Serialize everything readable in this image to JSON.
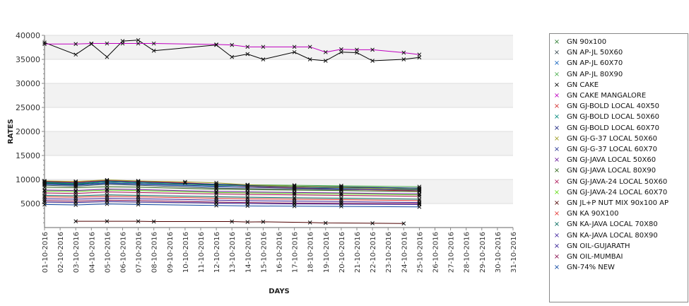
{
  "chart_data": {
    "type": "line",
    "xlabel": "DAYS",
    "ylabel": "RATES",
    "ylim": [
      0,
      40000
    ],
    "yticks": [
      5000,
      10000,
      15000,
      20000,
      25000,
      30000,
      35000,
      40000
    ],
    "grid": "alternating horizontal bands",
    "legend_position": "right",
    "marker": "x",
    "categories": [
      "01-10-2016",
      "02-10-2016",
      "03-10-2016",
      "04-10-2016",
      "05-10-2016",
      "06-10-2016",
      "07-10-2016",
      "08-10-2016",
      "09-10-2016",
      "10-10-2016",
      "11-10-2016",
      "12-10-2016",
      "13-10-2016",
      "14-10-2016",
      "15-10-2016",
      "16-10-2016",
      "17-10-2016",
      "18-10-2016",
      "19-10-2016",
      "20-10-2016",
      "21-10-2016",
      "22-10-2016",
      "23-10-2016",
      "24-10-2016",
      "25-10-2016",
      "26-10-2016",
      "27-10-2016",
      "28-10-2016",
      "29-10-2016",
      "30-10-2016",
      "31-10-2016"
    ],
    "series": [
      {
        "name": "GN 90x100",
        "color": "#2e7d32",
        "points": [
          [
            0,
            9200
          ],
          [
            2,
            9000
          ],
          [
            4,
            9500
          ],
          [
            6,
            9300
          ],
          [
            11,
            8800
          ],
          [
            13,
            8700
          ],
          [
            16,
            8600
          ],
          [
            19,
            8500
          ],
          [
            24,
            8200
          ]
        ]
      },
      {
        "name": "GN AP-JL 50X60",
        "color": "#37474f",
        "points": [
          [
            0,
            8800
          ],
          [
            2,
            8600
          ],
          [
            4,
            9000
          ],
          [
            6,
            8800
          ],
          [
            11,
            8200
          ],
          [
            13,
            8100
          ],
          [
            16,
            8000
          ],
          [
            19,
            7900
          ],
          [
            24,
            7800
          ]
        ]
      },
      {
        "name": "GN AP-JL 60X70",
        "color": "#1565c0",
        "points": [
          [
            0,
            9000
          ],
          [
            2,
            8800
          ],
          [
            4,
            9200
          ],
          [
            6,
            9000
          ],
          [
            11,
            8500
          ],
          [
            13,
            8400
          ],
          [
            16,
            8300
          ],
          [
            19,
            8200
          ],
          [
            24,
            8000
          ]
        ]
      },
      {
        "name": "GN AP-JL 80X90",
        "color": "#4caf50",
        "points": [
          [
            0,
            9400
          ],
          [
            2,
            9200
          ],
          [
            4,
            9700
          ],
          [
            6,
            9500
          ],
          [
            11,
            9000
          ],
          [
            13,
            8900
          ],
          [
            16,
            8800
          ],
          [
            19,
            8700
          ],
          [
            24,
            8500
          ]
        ]
      },
      {
        "name": "GN CAKE",
        "color": "#000000",
        "points": [
          [
            0,
            38500
          ],
          [
            2,
            36000
          ],
          [
            3,
            38200
          ],
          [
            4,
            35500
          ],
          [
            5,
            38800
          ],
          [
            6,
            39000
          ],
          [
            7,
            36800
          ],
          [
            11,
            38000
          ],
          [
            12,
            35500
          ],
          [
            13,
            36100
          ],
          [
            14,
            35000
          ],
          [
            16,
            36500
          ],
          [
            17,
            35000
          ],
          [
            18,
            34700
          ],
          [
            19,
            36500
          ],
          [
            20,
            36400
          ],
          [
            21,
            34700
          ],
          [
            23,
            35000
          ],
          [
            24,
            35400
          ]
        ]
      },
      {
        "name": "GN CAKE MANGALORE",
        "color": "#c000c0",
        "points": [
          [
            0,
            38200
          ],
          [
            2,
            38200
          ],
          [
            3,
            38300
          ],
          [
            4,
            38300
          ],
          [
            5,
            38300
          ],
          [
            6,
            38300
          ],
          [
            7,
            38300
          ],
          [
            11,
            38100
          ],
          [
            12,
            38000
          ],
          [
            13,
            37600
          ],
          [
            14,
            37600
          ],
          [
            16,
            37600
          ],
          [
            17,
            37600
          ],
          [
            18,
            36500
          ],
          [
            19,
            37100
          ],
          [
            20,
            37000
          ],
          [
            21,
            37000
          ],
          [
            23,
            36400
          ],
          [
            24,
            36000
          ]
        ]
      },
      {
        "name": "GN GJ-BOLD LOCAL 40X50",
        "color": "#d32f2f",
        "points": [
          [
            0,
            9600
          ],
          [
            2,
            9500
          ],
          [
            4,
            9800
          ],
          [
            6,
            9600
          ],
          [
            9,
            9300
          ],
          [
            11,
            9000
          ],
          [
            13,
            8600
          ],
          [
            16,
            8300
          ],
          [
            19,
            8000
          ],
          [
            24,
            7600
          ]
        ]
      },
      {
        "name": "GN GJ-BOLD LOCAL 50X60",
        "color": "#00897b",
        "points": [
          [
            0,
            9300
          ],
          [
            2,
            9100
          ],
          [
            4,
            9500
          ],
          [
            6,
            9300
          ],
          [
            11,
            8900
          ],
          [
            13,
            8700
          ],
          [
            16,
            8500
          ],
          [
            19,
            8300
          ],
          [
            24,
            8000
          ]
        ]
      },
      {
        "name": "GN GJ-BOLD LOCAL 60X70",
        "color": "#1a237e",
        "points": [
          [
            0,
            9500
          ],
          [
            2,
            9300
          ],
          [
            4,
            9700
          ],
          [
            6,
            9500
          ],
          [
            11,
            9000
          ],
          [
            13,
            8800
          ],
          [
            16,
            8600
          ],
          [
            19,
            8400
          ],
          [
            24,
            8200
          ]
        ]
      },
      {
        "name": "GN GJ-G-37 LOCAL 50X60",
        "color": "#9e9d24",
        "points": [
          [
            0,
            9700
          ],
          [
            2,
            9600
          ],
          [
            4,
            9900
          ],
          [
            6,
            9700
          ],
          [
            9,
            9500
          ],
          [
            11,
            9300
          ],
          [
            13,
            8900
          ],
          [
            16,
            8600
          ],
          [
            19,
            8300
          ],
          [
            24,
            7900
          ]
        ]
      },
      {
        "name": "GN GJ-G-37 LOCAL 60X70",
        "color": "#283593",
        "points": [
          [
            0,
            9100
          ],
          [
            2,
            8900
          ],
          [
            4,
            9300
          ],
          [
            6,
            9100
          ],
          [
            11,
            8600
          ],
          [
            13,
            8400
          ],
          [
            16,
            8200
          ],
          [
            19,
            8000
          ],
          [
            24,
            7800
          ]
        ]
      },
      {
        "name": "GN GJ-JAVA LOCAL 50X60",
        "color": "#6a1b9a",
        "points": [
          [
            0,
            7800
          ],
          [
            2,
            7700
          ],
          [
            4,
            8000
          ],
          [
            6,
            7900
          ],
          [
            11,
            7500
          ],
          [
            13,
            7400
          ],
          [
            16,
            7300
          ],
          [
            19,
            7200
          ],
          [
            24,
            7000
          ]
        ]
      },
      {
        "name": "GN GJ-JAVA LOCAL 80X90",
        "color": "#33691e",
        "points": [
          [
            0,
            8400
          ],
          [
            2,
            8300
          ],
          [
            4,
            8500
          ],
          [
            6,
            8400
          ],
          [
            11,
            8000
          ],
          [
            13,
            7900
          ],
          [
            16,
            7800
          ],
          [
            19,
            7700
          ],
          [
            24,
            7500
          ]
        ]
      },
      {
        "name": "GN GJ-JAVA-24 LOCAL 50X60",
        "color": "#ad1457",
        "points": [
          [
            0,
            7200
          ],
          [
            2,
            7100
          ],
          [
            4,
            7400
          ],
          [
            6,
            7300
          ],
          [
            11,
            7000
          ],
          [
            13,
            6900
          ],
          [
            16,
            6800
          ],
          [
            19,
            6700
          ],
          [
            24,
            6500
          ]
        ]
      },
      {
        "name": "GN GJ-JAVA-24 LOCAL 60X70",
        "color": "#64dd17",
        "points": [
          [
            0,
            7600
          ],
          [
            2,
            7500
          ],
          [
            4,
            7800
          ],
          [
            6,
            7700
          ],
          [
            11,
            7300
          ],
          [
            13,
            7200
          ],
          [
            16,
            7100
          ],
          [
            19,
            7000
          ],
          [
            24,
            6800
          ]
        ]
      },
      {
        "name": "GN JL+P NUT MIX 90x100 AP",
        "color": "#4e0000",
        "points": [
          [
            2,
            1300
          ],
          [
            4,
            1300
          ],
          [
            6,
            1300
          ],
          [
            7,
            1250
          ],
          [
            12,
            1250
          ],
          [
            13,
            1150
          ],
          [
            14,
            1200
          ],
          [
            17,
            1050
          ],
          [
            18,
            950
          ],
          [
            21,
            900
          ],
          [
            23,
            850
          ]
        ]
      },
      {
        "name": "GN KA 90X100",
        "color": "#e53935",
        "points": [
          [
            0,
            6400
          ],
          [
            2,
            6300
          ],
          [
            4,
            6500
          ],
          [
            6,
            6400
          ],
          [
            11,
            6100
          ],
          [
            13,
            6000
          ],
          [
            16,
            5900
          ],
          [
            19,
            5800
          ],
          [
            24,
            5600
          ]
        ]
      },
      {
        "name": "GN KA-JAVA LOCAL 70X80",
        "color": "#00695c",
        "points": [
          [
            0,
            6700
          ],
          [
            2,
            6600
          ],
          [
            4,
            6800
          ],
          [
            6,
            6700
          ],
          [
            11,
            6400
          ],
          [
            13,
            6300
          ],
          [
            16,
            6200
          ],
          [
            19,
            6100
          ],
          [
            24,
            5900
          ]
        ]
      },
      {
        "name": "GN KA-JAVA LOCAL 80X90",
        "color": "#4527a0",
        "points": [
          [
            0,
            6000
          ],
          [
            2,
            5900
          ],
          [
            4,
            6100
          ],
          [
            6,
            6000
          ],
          [
            11,
            5700
          ],
          [
            13,
            5600
          ],
          [
            16,
            5500
          ],
          [
            19,
            5400
          ],
          [
            24,
            5200
          ]
        ]
      },
      {
        "name": "GN OIL-GUJARATH",
        "color": "#311b92",
        "points": [
          [
            0,
            5300
          ],
          [
            2,
            5200
          ],
          [
            4,
            5400
          ],
          [
            6,
            5300
          ],
          [
            11,
            5100
          ],
          [
            13,
            5000
          ],
          [
            16,
            4900
          ],
          [
            19,
            4850
          ],
          [
            24,
            4800
          ]
        ]
      },
      {
        "name": "GN OIL-MUMBAI",
        "color": "#880e4f",
        "points": [
          [
            0,
            5600
          ],
          [
            2,
            5500
          ],
          [
            4,
            5700
          ],
          [
            6,
            5600
          ],
          [
            11,
            5300
          ],
          [
            13,
            5200
          ],
          [
            16,
            5100
          ],
          [
            19,
            5050
          ],
          [
            24,
            5000
          ]
        ]
      },
      {
        "name": "GN-74% NEW",
        "color": "#0d47a1",
        "points": [
          [
            0,
            4800
          ],
          [
            2,
            4700
          ],
          [
            4,
            4900
          ],
          [
            6,
            4800
          ],
          [
            11,
            4600
          ],
          [
            13,
            4500
          ],
          [
            16,
            4450
          ],
          [
            19,
            4400
          ],
          [
            24,
            4300
          ]
        ]
      }
    ]
  }
}
